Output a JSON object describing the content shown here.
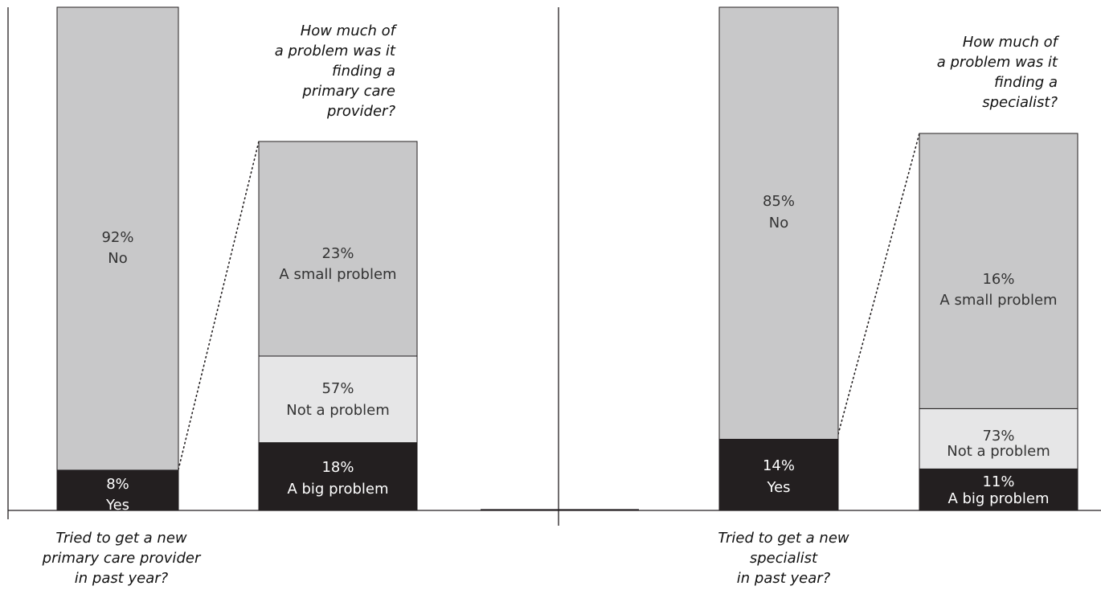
{
  "chart_data": [
    {
      "type": "bar",
      "stacked": true,
      "ylim": [
        0,
        100
      ],
      "grid": false,
      "legend": "none",
      "bars": [
        {
          "segments": [
            {
              "label": "Yes",
              "value": 8,
              "value_text": "8%",
              "color": "#231f20",
              "text_color": "#ffffff"
            },
            {
              "label": "No",
              "value": 92,
              "value_text": "92%",
              "color": "#c8c8c9",
              "text_color": "#333333"
            }
          ]
        },
        {
          "segments": [
            {
              "label": "A big problem",
              "value": 18,
              "value_text": "18%",
              "color": "#231f20",
              "text_color": "#ffffff"
            },
            {
              "label": "A small problem",
              "value": 23,
              "value_text": "23%",
              "color": "#e6e6e7",
              "text_color": "#333333"
            },
            {
              "label": "Not a problem",
              "value": 57,
              "value_text": "57%",
              "color": "#c8c8c9",
              "text_color": "#333333"
            }
          ]
        }
      ],
      "bottom_caption": [
        "Tried to get a new",
        "primary care provider",
        "in past year?"
      ],
      "breakout_question": [
        "How much of",
        "a problem was it",
        "finding a",
        "primary care",
        "provider?"
      ]
    },
    {
      "type": "bar",
      "stacked": true,
      "ylim": [
        0,
        100
      ],
      "grid": false,
      "legend": "none",
      "bars": [
        {
          "segments": [
            {
              "label": "Yes",
              "value": 14,
              "value_text": "14%",
              "color": "#231f20",
              "text_color": "#ffffff"
            },
            {
              "label": "No",
              "value": 85,
              "value_text": "85%",
              "color": "#c8c8c9",
              "text_color": "#333333"
            }
          ]
        },
        {
          "segments": [
            {
              "label": "A big problem",
              "value": 11,
              "value_text": "11%",
              "color": "#231f20",
              "text_color": "#ffffff"
            },
            {
              "label": "A small problem",
              "value": 16,
              "value_text": "16%",
              "color": "#e6e6e7",
              "text_color": "#333333"
            },
            {
              "label": "Not a problem",
              "value": 73,
              "value_text": "73%",
              "color": "#c8c8c9",
              "text_color": "#333333"
            }
          ]
        }
      ],
      "bottom_caption": [
        "Tried to get a new",
        "specialist",
        "in past year?"
      ],
      "breakout_question": [
        "How much of",
        "a problem was it",
        "finding a",
        "specialist?"
      ]
    }
  ]
}
